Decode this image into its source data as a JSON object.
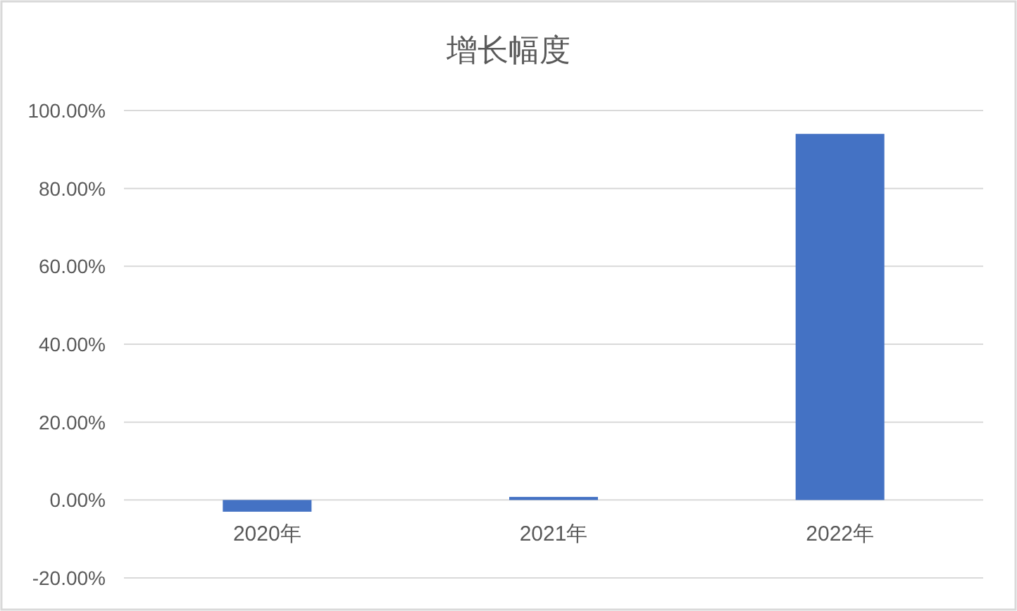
{
  "chart_data": {
    "type": "bar",
    "title": "增长幅度",
    "categories": [
      "2020年",
      "2021年",
      "2022年"
    ],
    "values": [
      -3,
      0.8,
      94
    ],
    "color": "#4472c4",
    "ylim": [
      -20,
      100
    ],
    "yticks": [
      {
        "value": -20,
        "label": "-20.00%"
      },
      {
        "value": 0,
        "label": "0.00%"
      },
      {
        "value": 20,
        "label": "20.00%"
      },
      {
        "value": 40,
        "label": "40.00%"
      },
      {
        "value": 60,
        "label": "60.00%"
      },
      {
        "value": 80,
        "label": "80.00%"
      },
      {
        "value": 100,
        "label": "100.00%"
      }
    ],
    "grid": "y"
  }
}
